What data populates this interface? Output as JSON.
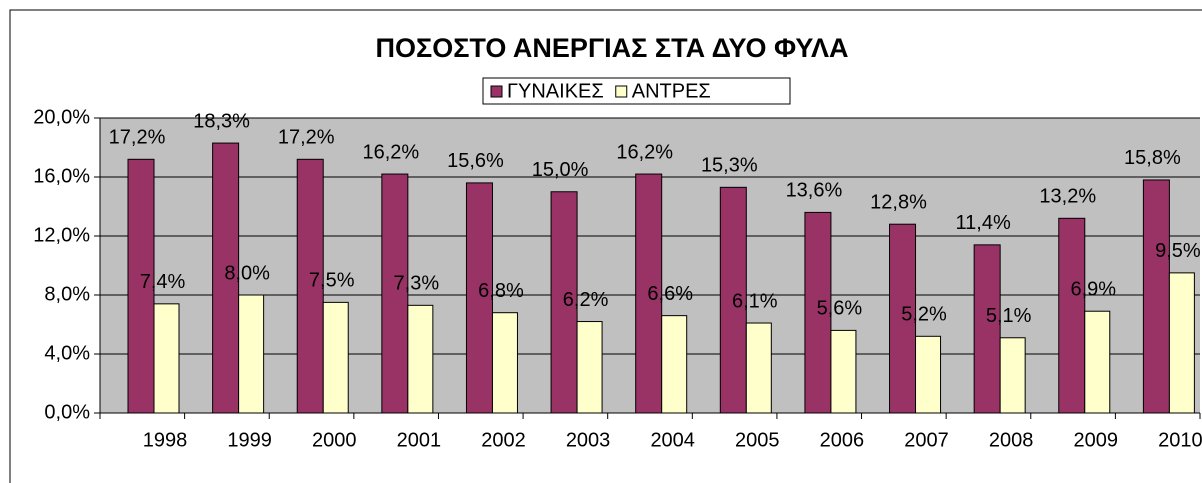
{
  "chart_data": {
    "type": "bar",
    "title": "ΠΟΣΟΣΤΟ ΑΝΕΡΓΙΑΣ ΣΤΑ ΔΥΟ ΦΥΛΑ",
    "categories": [
      "1998",
      "1999",
      "2000",
      "2001",
      "2002",
      "2003",
      "2004",
      "2005",
      "2006",
      "2007",
      "2008",
      "2009",
      "2010"
    ],
    "series": [
      {
        "name": "ΓΥΝΑΙΚΕΣ",
        "color": "#993366",
        "values": [
          17.2,
          18.3,
          17.2,
          16.2,
          15.6,
          15.0,
          16.2,
          15.3,
          13.6,
          12.8,
          11.4,
          13.2,
          15.8
        ],
        "value_labels": [
          "17,2%",
          "18,3%",
          "17,2%",
          "16,2%",
          "15,6%",
          "15,0%",
          "16,2%",
          "15,3%",
          "13,6%",
          "12,8%",
          "11,4%",
          "13,2%",
          "15,8%"
        ]
      },
      {
        "name": "ΑΝΤΡΕΣ",
        "color": "#ffffcc",
        "values": [
          7.4,
          8.0,
          7.5,
          7.3,
          6.8,
          6.2,
          6.6,
          6.1,
          5.6,
          5.2,
          5.1,
          6.9,
          9.5
        ],
        "value_labels": [
          "7,4%",
          "8,0%",
          "7,5%",
          "7,3%",
          "6,8%",
          "6,2%",
          "6,6%",
          "6,1%",
          "5,6%",
          "5,2%",
          "5,1%",
          "6,9%",
          "9,5%"
        ]
      }
    ],
    "ylim": [
      0,
      20
    ],
    "yticks": [
      {
        "value": 0,
        "label": "0,0%"
      },
      {
        "value": 4,
        "label": "4,0%"
      },
      {
        "value": 8,
        "label": "8,0%"
      },
      {
        "value": 12,
        "label": "12,0%"
      },
      {
        "value": 16,
        "label": "16,0%"
      },
      {
        "value": 20,
        "label": "20,0%"
      }
    ],
    "grid": true,
    "plot_background": "#c0c0c0"
  }
}
